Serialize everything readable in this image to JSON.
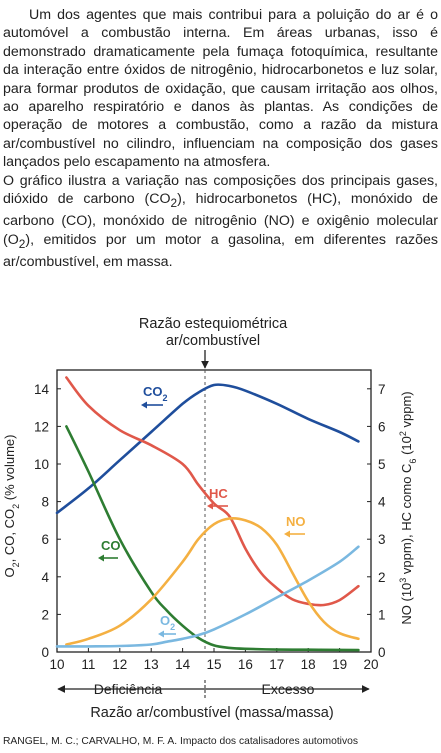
{
  "paragraph": {
    "p1_a": "Um dos agentes que mais contribui para a poluição do ar é o automóvel a combustão interna. Em áreas urbanas, isso é demonstrado dramaticamente pela fumaça fotoquímica, resultante da interação entre óxidos de nitrogênio, hidrocarbonetos e luz solar, para formar produtos de oxidação, que causam irritação aos olhos, ao aparelho respiratório e danos às plantas. As condições de operação de motores a combustão, como a razão da mistura ar/combustível no cilindro, influenciam na composição dos gases lançados pelo escapamento na atmosfera.",
    "p2_a": "O gráfico ilustra a variação nas composições dos principais gases, dióxido de carbono (CO",
    "p2_b": "), hidrocarbonetos (HC), monóxido de carbono (CO), monóxido de nitrogênio (NO) e oxigênio molecular (O",
    "p2_c": "), emitidos por um motor a gasolina, em diferentes razões ar/combustível, em massa.",
    "sub2": "2"
  },
  "citation": "RANGEL, M. C.; CARVALHO, M. F. A. Impacto dos catalisadores automotivos",
  "chart_data": {
    "type": "line",
    "annotation_line1": "Razão estequiométrica",
    "annotation_line2": "ar/combustível",
    "stoichiometric_x": 14.8,
    "xlabel": "Razão ar/combustível (massa/massa)",
    "xlim": [
      10,
      20
    ],
    "x_ticks": [
      "10",
      "11",
      "12",
      "13",
      "14",
      "15",
      "16",
      "17",
      "18",
      "19",
      "20"
    ],
    "ylabel_left_main": "O",
    "ylabel_left_rest1": ", CO, CO",
    "ylabel_left_rest2": " (% volume)",
    "ylim_left": [
      0,
      15
    ],
    "y_left_ticks": [
      "0",
      "2",
      "4",
      "6",
      "8",
      "10",
      "12",
      "14"
    ],
    "ylabel_right_a": "NO (10",
    "ylabel_right_b": " vppm), HC como C",
    "ylabel_right_c": " (10",
    "ylabel_right_d": " vppm)",
    "ylabel_right_sup3": "3",
    "ylabel_right_sub6": "6",
    "ylabel_right_sup2": "2",
    "ylim_right": [
      0,
      7.5
    ],
    "y_right_ticks": [
      "0",
      "1",
      "2",
      "3",
      "4",
      "5",
      "6",
      "7"
    ],
    "region_left": "Deficiência",
    "region_right": "Excesso",
    "label_co2": "CO",
    "label_hc": "HC",
    "label_co": "CO",
    "label_no": "NO",
    "label_o2": "O",
    "sub2": "2",
    "series": [
      {
        "key": "co2",
        "axis": "left",
        "color": "#1f4e9c",
        "x": [
          10,
          11,
          12,
          13,
          14,
          14.5,
          15,
          15.5,
          16,
          17,
          18,
          19,
          19.6
        ],
        "y": [
          7.4,
          8.7,
          10.2,
          11.7,
          13.2,
          13.8,
          14.2,
          14.15,
          13.9,
          13.2,
          12.4,
          11.7,
          11.2
        ]
      },
      {
        "key": "hc",
        "axis": "right",
        "color": "#e0584a",
        "x": [
          10.3,
          11,
          12,
          13,
          14,
          14.5,
          15,
          15.5,
          16,
          16.5,
          17,
          17.5,
          18,
          18.5,
          19,
          19.6
        ],
        "y": [
          7.3,
          6.55,
          5.9,
          5.5,
          5.0,
          4.45,
          3.95,
          3.6,
          2.75,
          2.1,
          1.7,
          1.4,
          1.28,
          1.25,
          1.38,
          1.75
        ]
      },
      {
        "key": "co",
        "axis": "left",
        "color": "#2e7d32",
        "x": [
          10.3,
          11,
          12,
          13,
          13.5,
          14,
          14.5,
          15,
          15.5,
          16,
          17,
          18,
          19,
          19.6
        ],
        "y": [
          12.0,
          9.6,
          6.0,
          3.2,
          2.2,
          1.4,
          0.75,
          0.35,
          0.22,
          0.17,
          0.13,
          0.12,
          0.11,
          0.1
        ]
      },
      {
        "key": "no",
        "axis": "right",
        "color": "#f4b042",
        "x": [
          10.3,
          11,
          12,
          13,
          14,
          14.5,
          15,
          15.5,
          16,
          16.5,
          17,
          17.5,
          18,
          18.5,
          19,
          19.6
        ],
        "y": [
          0.2,
          0.35,
          0.7,
          1.4,
          2.4,
          3.0,
          3.4,
          3.55,
          3.5,
          3.3,
          2.85,
          2.1,
          1.35,
          0.8,
          0.5,
          0.35
        ]
      },
      {
        "key": "o2",
        "axis": "left",
        "color": "#7ab8e0",
        "x": [
          10,
          11,
          12,
          13,
          13.5,
          14,
          14.5,
          15,
          16,
          17,
          18,
          19,
          19.6
        ],
        "y": [
          0.3,
          0.3,
          0.32,
          0.4,
          0.55,
          0.7,
          0.9,
          1.2,
          2.0,
          2.9,
          3.8,
          4.8,
          5.6
        ]
      }
    ]
  }
}
